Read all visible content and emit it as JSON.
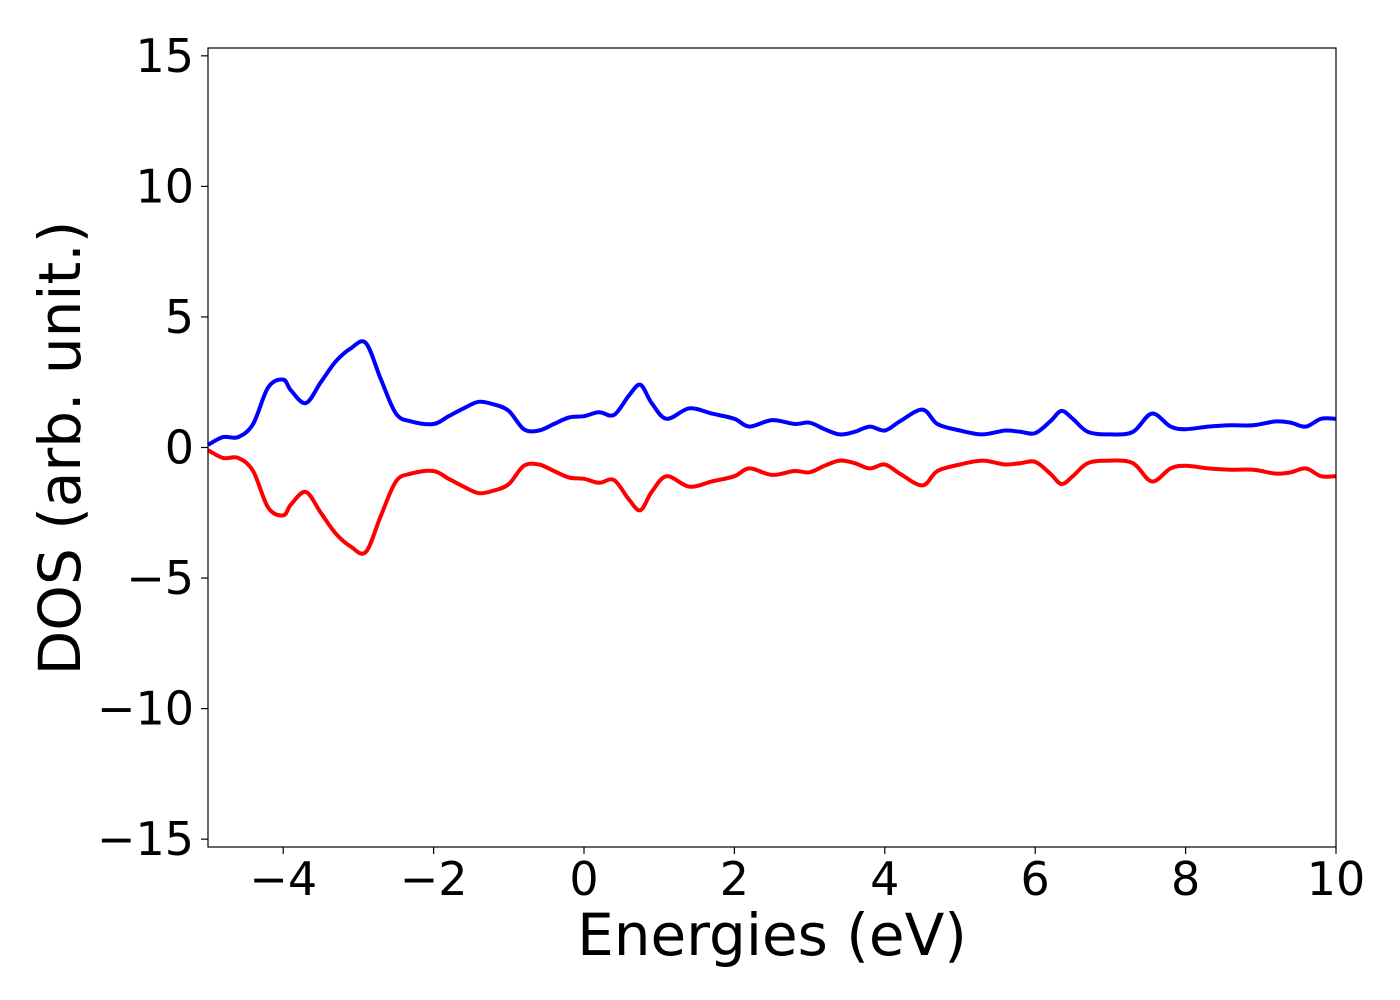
{
  "chart_data": {
    "type": "line",
    "title": "",
    "xlabel": "Energies (eV)",
    "ylabel": "DOS (arb. unit.)",
    "xlim": [
      -5,
      10
    ],
    "ylim": [
      -15.3,
      15.3
    ],
    "grid": false,
    "x_ticks": [
      -4,
      -2,
      0,
      2,
      4,
      6,
      8,
      10
    ],
    "x_tick_labels": [
      "−4",
      "−2",
      "0",
      "2",
      "4",
      "6",
      "8",
      "10"
    ],
    "y_ticks": [
      15,
      10,
      5,
      0,
      -5,
      -10,
      -15
    ],
    "y_tick_labels": [
      "15",
      "10",
      "5",
      "0",
      "−5",
      "−10",
      "−15"
    ],
    "series": [
      {
        "color": "#0000ff",
        "x": [
          -5.0,
          -4.8,
          -4.6,
          -4.4,
          -4.2,
          -4.0,
          -3.9,
          -3.7,
          -3.5,
          -3.3,
          -3.1,
          -2.9,
          -2.7,
          -2.5,
          -2.3,
          -2.0,
          -1.8,
          -1.6,
          -1.4,
          -1.2,
          -1.0,
          -0.8,
          -0.6,
          -0.4,
          -0.2,
          0.0,
          0.2,
          0.4,
          0.6,
          0.75,
          0.9,
          1.1,
          1.4,
          1.7,
          2.0,
          2.2,
          2.5,
          2.8,
          3.0,
          3.2,
          3.4,
          3.6,
          3.8,
          4.0,
          4.2,
          4.5,
          4.7,
          5.0,
          5.3,
          5.6,
          5.8,
          6.0,
          6.2,
          6.35,
          6.5,
          6.7,
          7.0,
          7.3,
          7.55,
          7.8,
          8.0,
          8.3,
          8.6,
          8.9,
          9.2,
          9.4,
          9.6,
          9.8,
          10.0
        ],
        "y": [
          0.1,
          0.4,
          0.4,
          0.9,
          2.3,
          2.6,
          2.2,
          1.7,
          2.5,
          3.3,
          3.8,
          4.0,
          2.6,
          1.3,
          1.0,
          0.9,
          1.2,
          1.5,
          1.75,
          1.65,
          1.4,
          0.7,
          0.65,
          0.9,
          1.15,
          1.2,
          1.35,
          1.25,
          2.0,
          2.4,
          1.7,
          1.1,
          1.5,
          1.3,
          1.1,
          0.8,
          1.05,
          0.9,
          0.95,
          0.7,
          0.5,
          0.6,
          0.8,
          0.65,
          1.0,
          1.45,
          0.9,
          0.65,
          0.5,
          0.65,
          0.6,
          0.55,
          1.0,
          1.4,
          1.1,
          0.6,
          0.5,
          0.6,
          1.3,
          0.8,
          0.7,
          0.8,
          0.85,
          0.85,
          1.0,
          0.95,
          0.8,
          1.1,
          1.1
        ]
      },
      {
        "color": "#ff0000",
        "x": [
          -5.0,
          -4.8,
          -4.6,
          -4.4,
          -4.2,
          -4.0,
          -3.9,
          -3.7,
          -3.5,
          -3.3,
          -3.1,
          -2.9,
          -2.7,
          -2.5,
          -2.3,
          -2.0,
          -1.8,
          -1.6,
          -1.4,
          -1.2,
          -1.0,
          -0.8,
          -0.6,
          -0.4,
          -0.2,
          0.0,
          0.2,
          0.4,
          0.6,
          0.75,
          0.9,
          1.1,
          1.4,
          1.7,
          2.0,
          2.2,
          2.5,
          2.8,
          3.0,
          3.2,
          3.4,
          3.6,
          3.8,
          4.0,
          4.2,
          4.5,
          4.7,
          5.0,
          5.3,
          5.6,
          5.8,
          6.0,
          6.2,
          6.35,
          6.5,
          6.7,
          7.0,
          7.3,
          7.55,
          7.8,
          8.0,
          8.3,
          8.6,
          8.9,
          9.2,
          9.4,
          9.6,
          9.8,
          10.0
        ],
        "y": [
          -0.1,
          -0.4,
          -0.4,
          -0.9,
          -2.3,
          -2.6,
          -2.2,
          -1.7,
          -2.5,
          -3.3,
          -3.8,
          -4.0,
          -2.6,
          -1.3,
          -1.0,
          -0.9,
          -1.2,
          -1.5,
          -1.75,
          -1.65,
          -1.4,
          -0.7,
          -0.65,
          -0.9,
          -1.15,
          -1.2,
          -1.35,
          -1.25,
          -2.0,
          -2.4,
          -1.7,
          -1.1,
          -1.5,
          -1.3,
          -1.1,
          -0.8,
          -1.05,
          -0.9,
          -0.95,
          -0.7,
          -0.5,
          -0.6,
          -0.8,
          -0.65,
          -1.0,
          -1.45,
          -0.9,
          -0.65,
          -0.5,
          -0.65,
          -0.6,
          -0.55,
          -1.0,
          -1.4,
          -1.1,
          -0.6,
          -0.5,
          -0.6,
          -1.3,
          -0.8,
          -0.7,
          -0.8,
          -0.85,
          -0.85,
          -1.0,
          -0.95,
          -0.8,
          -1.1,
          -1.1
        ]
      }
    ]
  }
}
